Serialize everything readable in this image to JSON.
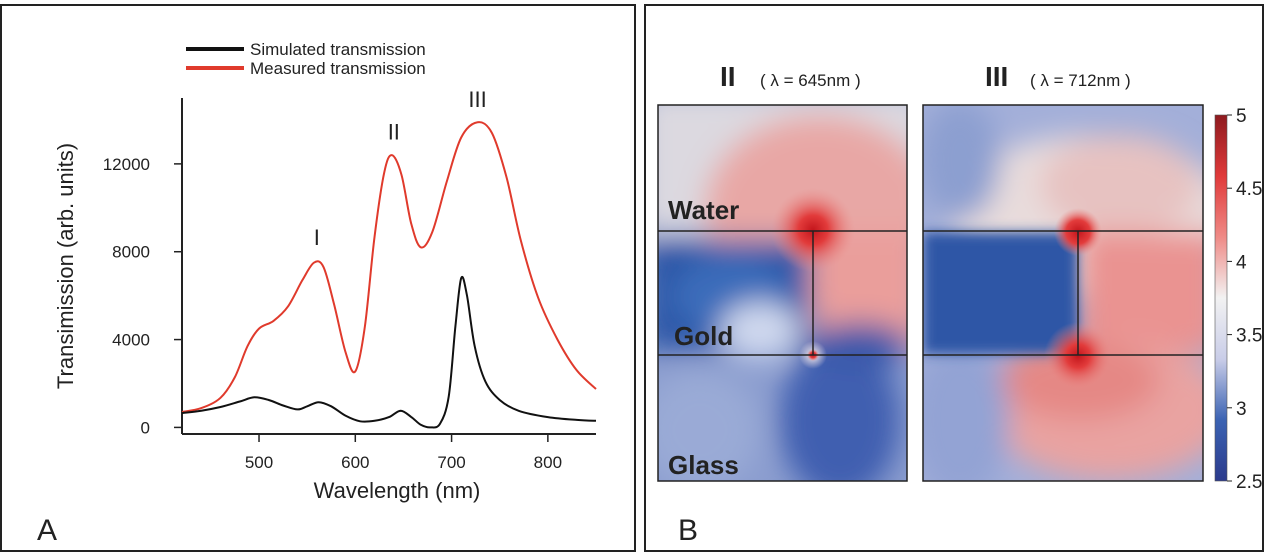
{
  "chart_data": [
    {
      "type": "line",
      "panel_label": "A",
      "xlabel": "Wavelength (nm)",
      "ylabel": "Transimission (arb. units)",
      "xlim": [
        420,
        850
      ],
      "ylim": [
        -300,
        15000
      ],
      "xticks": [
        500,
        600,
        700,
        800
      ],
      "yticks": [
        0,
        4000,
        8000,
        12000
      ],
      "legend_position": "top",
      "peak_labels": [
        {
          "text": "I",
          "x": 560,
          "y": 8300
        },
        {
          "text": "II",
          "x": 640,
          "y": 13100
        },
        {
          "text": "III",
          "x": 727,
          "y": 14600
        }
      ],
      "series": [
        {
          "name": "Simulated transmission",
          "color": "#111111",
          "points": [
            [
              420,
              650
            ],
            [
              440,
              760
            ],
            [
              460,
              930
            ],
            [
              480,
              1180
            ],
            [
              495,
              1370
            ],
            [
              510,
              1250
            ],
            [
              525,
              1000
            ],
            [
              540,
              820
            ],
            [
              550,
              960
            ],
            [
              562,
              1150
            ],
            [
              575,
              960
            ],
            [
              590,
              530
            ],
            [
              605,
              280
            ],
            [
              620,
              300
            ],
            [
              635,
              470
            ],
            [
              647,
              760
            ],
            [
              658,
              480
            ],
            [
              668,
              120
            ],
            [
              678,
              0
            ],
            [
              688,
              170
            ],
            [
              697,
              1400
            ],
            [
              704,
              4600
            ],
            [
              710,
              6800
            ],
            [
              716,
              6000
            ],
            [
              724,
              3700
            ],
            [
              735,
              2100
            ],
            [
              750,
              1250
            ],
            [
              770,
              750
            ],
            [
              800,
              470
            ],
            [
              830,
              340
            ],
            [
              850,
              300
            ]
          ]
        },
        {
          "name": "Measured transmission",
          "color": "#e03a2c",
          "points": [
            [
              420,
              700
            ],
            [
              440,
              880
            ],
            [
              460,
              1350
            ],
            [
              475,
              2300
            ],
            [
              488,
              3700
            ],
            [
              500,
              4500
            ],
            [
              515,
              4850
            ],
            [
              530,
              5500
            ],
            [
              545,
              6700
            ],
            [
              557,
              7500
            ],
            [
              567,
              7300
            ],
            [
              578,
              5600
            ],
            [
              590,
              3400
            ],
            [
              600,
              2550
            ],
            [
              610,
              4600
            ],
            [
              620,
              8700
            ],
            [
              630,
              11600
            ],
            [
              638,
              12400
            ],
            [
              648,
              11500
            ],
            [
              658,
              9300
            ],
            [
              668,
              8200
            ],
            [
              680,
              8900
            ],
            [
              695,
              11200
            ],
            [
              710,
              13200
            ],
            [
              727,
              13900
            ],
            [
              742,
              13400
            ],
            [
              757,
              11400
            ],
            [
              772,
              8500
            ],
            [
              790,
              5900
            ],
            [
              810,
              4000
            ],
            [
              830,
              2600
            ],
            [
              850,
              1750
            ]
          ]
        }
      ]
    },
    {
      "type": "heatmap",
      "panel_label": "B",
      "maps": [
        {
          "title_main": "II",
          "title_sub": "( λ = 645nm )"
        },
        {
          "title_main": "III",
          "title_sub": "( λ = 712nm )"
        }
      ],
      "region_labels": [
        "Water",
        "Gold",
        "Glass"
      ],
      "colorbar": {
        "min": 2.5,
        "max": 5,
        "ticks": [
          "5",
          "4.5",
          "4",
          "3.5",
          "3",
          "2.5"
        ],
        "colors": [
          "#2b3a8c",
          "#3b63b3",
          "#c9cde8",
          "#f2f2f2",
          "#ef8a86",
          "#e03a3a",
          "#8e1a1f"
        ]
      }
    }
  ]
}
